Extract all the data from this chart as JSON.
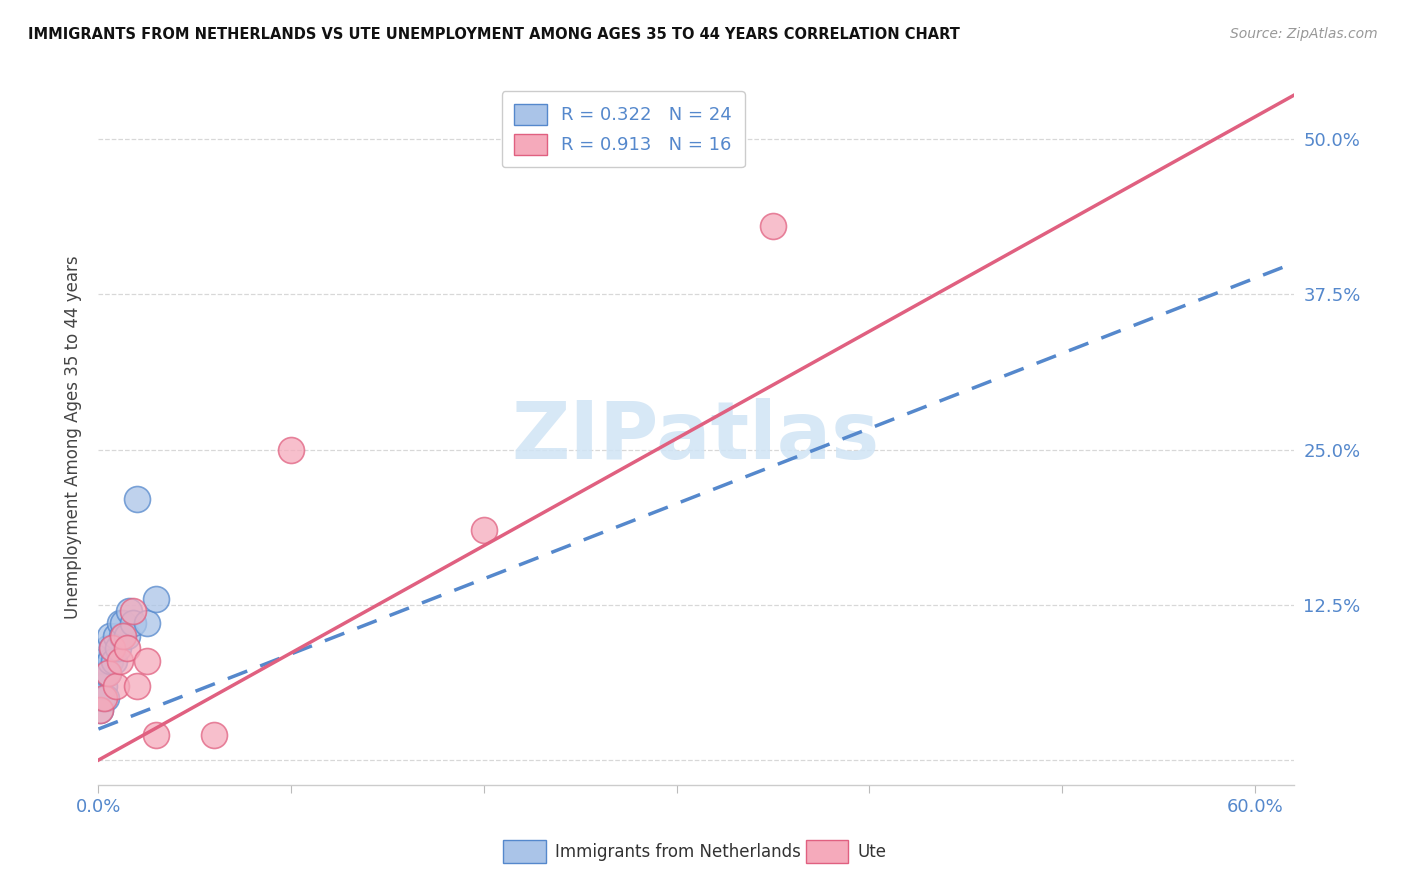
{
  "title": "IMMIGRANTS FROM NETHERLANDS VS UTE UNEMPLOYMENT AMONG AGES 35 TO 44 YEARS CORRELATION CHART",
  "source": "Source: ZipAtlas.com",
  "ylabel": "Unemployment Among Ages 35 to 44 years",
  "xlim": [
    0.0,
    0.62
  ],
  "ylim": [
    -0.02,
    0.54
  ],
  "yticks": [
    0.0,
    0.125,
    0.25,
    0.375,
    0.5
  ],
  "ytick_labels": [
    "",
    "12.5%",
    "25.0%",
    "37.5%",
    "50.0%"
  ],
  "xticks": [
    0.0,
    0.1,
    0.2,
    0.3,
    0.4,
    0.5,
    0.6
  ],
  "legend_r1": "R = 0.322",
  "legend_n1": "N = 24",
  "legend_r2": "R = 0.913",
  "legend_n2": "N = 16",
  "blue_color": "#aac4e8",
  "pink_color": "#f5aabb",
  "line_blue_color": "#5588cc",
  "line_pink_color": "#e06080",
  "watermark_color": "#d0e4f5",
  "blue_line_x": [
    0.0,
    0.62
  ],
  "blue_line_y": [
    0.025,
    0.4
  ],
  "pink_line_x": [
    0.0,
    0.62
  ],
  "pink_line_y": [
    0.0,
    0.535
  ],
  "blue_scatter_x": [
    0.001,
    0.002,
    0.002,
    0.003,
    0.003,
    0.004,
    0.004,
    0.005,
    0.005,
    0.006,
    0.006,
    0.007,
    0.008,
    0.009,
    0.01,
    0.011,
    0.012,
    0.013,
    0.015,
    0.016,
    0.018,
    0.02,
    0.025,
    0.03
  ],
  "blue_scatter_y": [
    0.04,
    0.05,
    0.07,
    0.06,
    0.08,
    0.05,
    0.07,
    0.07,
    0.09,
    0.08,
    0.1,
    0.09,
    0.08,
    0.1,
    0.09,
    0.11,
    0.1,
    0.11,
    0.1,
    0.12,
    0.11,
    0.21,
    0.11,
    0.13
  ],
  "pink_scatter_x": [
    0.001,
    0.003,
    0.005,
    0.007,
    0.009,
    0.011,
    0.013,
    0.015,
    0.018,
    0.02,
    0.025,
    0.03,
    0.06,
    0.1,
    0.2,
    0.35
  ],
  "pink_scatter_y": [
    0.04,
    0.05,
    0.07,
    0.09,
    0.06,
    0.08,
    0.1,
    0.09,
    0.12,
    0.06,
    0.08,
    0.02,
    0.02,
    0.25,
    0.185,
    0.43
  ],
  "background_color": "#ffffff",
  "grid_color": "#d8d8d8"
}
